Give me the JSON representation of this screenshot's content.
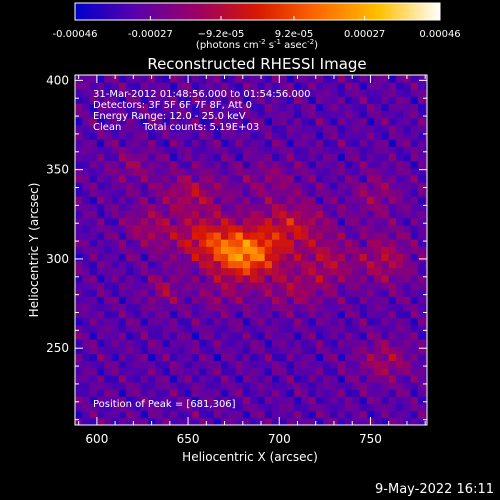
{
  "chart_data": {
    "type": "heatmap",
    "title": "Reconstructed RHESSI Image",
    "xlabel": "Heliocentric X (arcsec)",
    "ylabel": "Heliocentric Y (arcsec)",
    "xlim": [
      588,
      781
    ],
    "ylim": [
      207,
      403
    ],
    "x_ticks": [
      600,
      650,
      700,
      750
    ],
    "y_ticks": [
      250,
      300,
      350,
      400
    ],
    "x_tick_labels": [
      "600",
      "650",
      "700",
      "750"
    ],
    "y_tick_labels": [
      "250",
      "300",
      "350",
      "400"
    ],
    "colorbar": {
      "range": [
        -0.00046,
        0.00046
      ],
      "tick_values": [
        -0.00046,
        -0.00027,
        -9.2e-05,
        9.2e-05,
        0.00027,
        0.00046
      ],
      "tick_labels": [
        "-0.00046",
        "-0.00027",
        "−9.2e-05",
        "9.2e-05",
        "0.00027",
        "0.00046"
      ],
      "units_main": "(photons cm",
      "units_exp1": "-2",
      "units_mid": " s",
      "units_exp2": "-1",
      "units_end": " asec",
      "units_exp3": "-2",
      "units_close": ")",
      "colormap": [
        "#0000cc",
        "#5a00aa",
        "#9a0066",
        "#d81800",
        "#ff6a00",
        "#ffc000",
        "#ffffff"
      ]
    },
    "annotations": [
      "31-Mar-2012 01:48:56.000 to 01:54:56.000",
      "Detectors: 3F 5F 6F 7F 8F, Att 0",
      "Energy Range: 12.0 - 25.0 keV",
      "Clean",
      "Total counts: 5.19E+03"
    ],
    "peak_label": "Position of Peak = [681,306]",
    "peak": [
      681,
      306
    ],
    "grid": false,
    "sources": [
      {
        "x": 681,
        "y": 302,
        "amp": 0.00046,
        "sx": 13,
        "sy": 9
      },
      {
        "x": 660,
        "y": 312,
        "amp": 0.00026,
        "sx": 14,
        "sy": 9
      },
      {
        "x": 705,
        "y": 318,
        "amp": 0.00024,
        "sx": 14,
        "sy": 10
      },
      {
        "x": 652,
        "y": 337,
        "amp": 0.00018,
        "sx": 12,
        "sy": 8
      },
      {
        "x": 628,
        "y": 318,
        "amp": 0.00014,
        "sx": 9,
        "sy": 8
      },
      {
        "x": 727,
        "y": 298,
        "amp": 0.00017,
        "sx": 10,
        "sy": 9
      },
      {
        "x": 758,
        "y": 300,
        "amp": 0.00018,
        "sx": 10,
        "sy": 10
      },
      {
        "x": 753,
        "y": 336,
        "amp": 0.00012,
        "sx": 9,
        "sy": 9
      },
      {
        "x": 637,
        "y": 283,
        "amp": 0.00015,
        "sx": 6,
        "sy": 6
      },
      {
        "x": 758,
        "y": 243,
        "amp": 0.00016,
        "sx": 10,
        "sy": 8
      },
      {
        "x": 708,
        "y": 283,
        "amp": 0.00014,
        "sx": 12,
        "sy": 8
      },
      {
        "x": 620,
        "y": 352,
        "amp": 0.00011,
        "sx": 8,
        "sy": 7
      },
      {
        "x": 695,
        "y": 345,
        "amp": 0.0001,
        "sx": 12,
        "sy": 7
      },
      {
        "x": 668,
        "y": 280,
        "amp": 0.0001,
        "sx": 10,
        "sy": 7
      }
    ]
  },
  "footer": {
    "date": "9-May-2022 16:11"
  }
}
